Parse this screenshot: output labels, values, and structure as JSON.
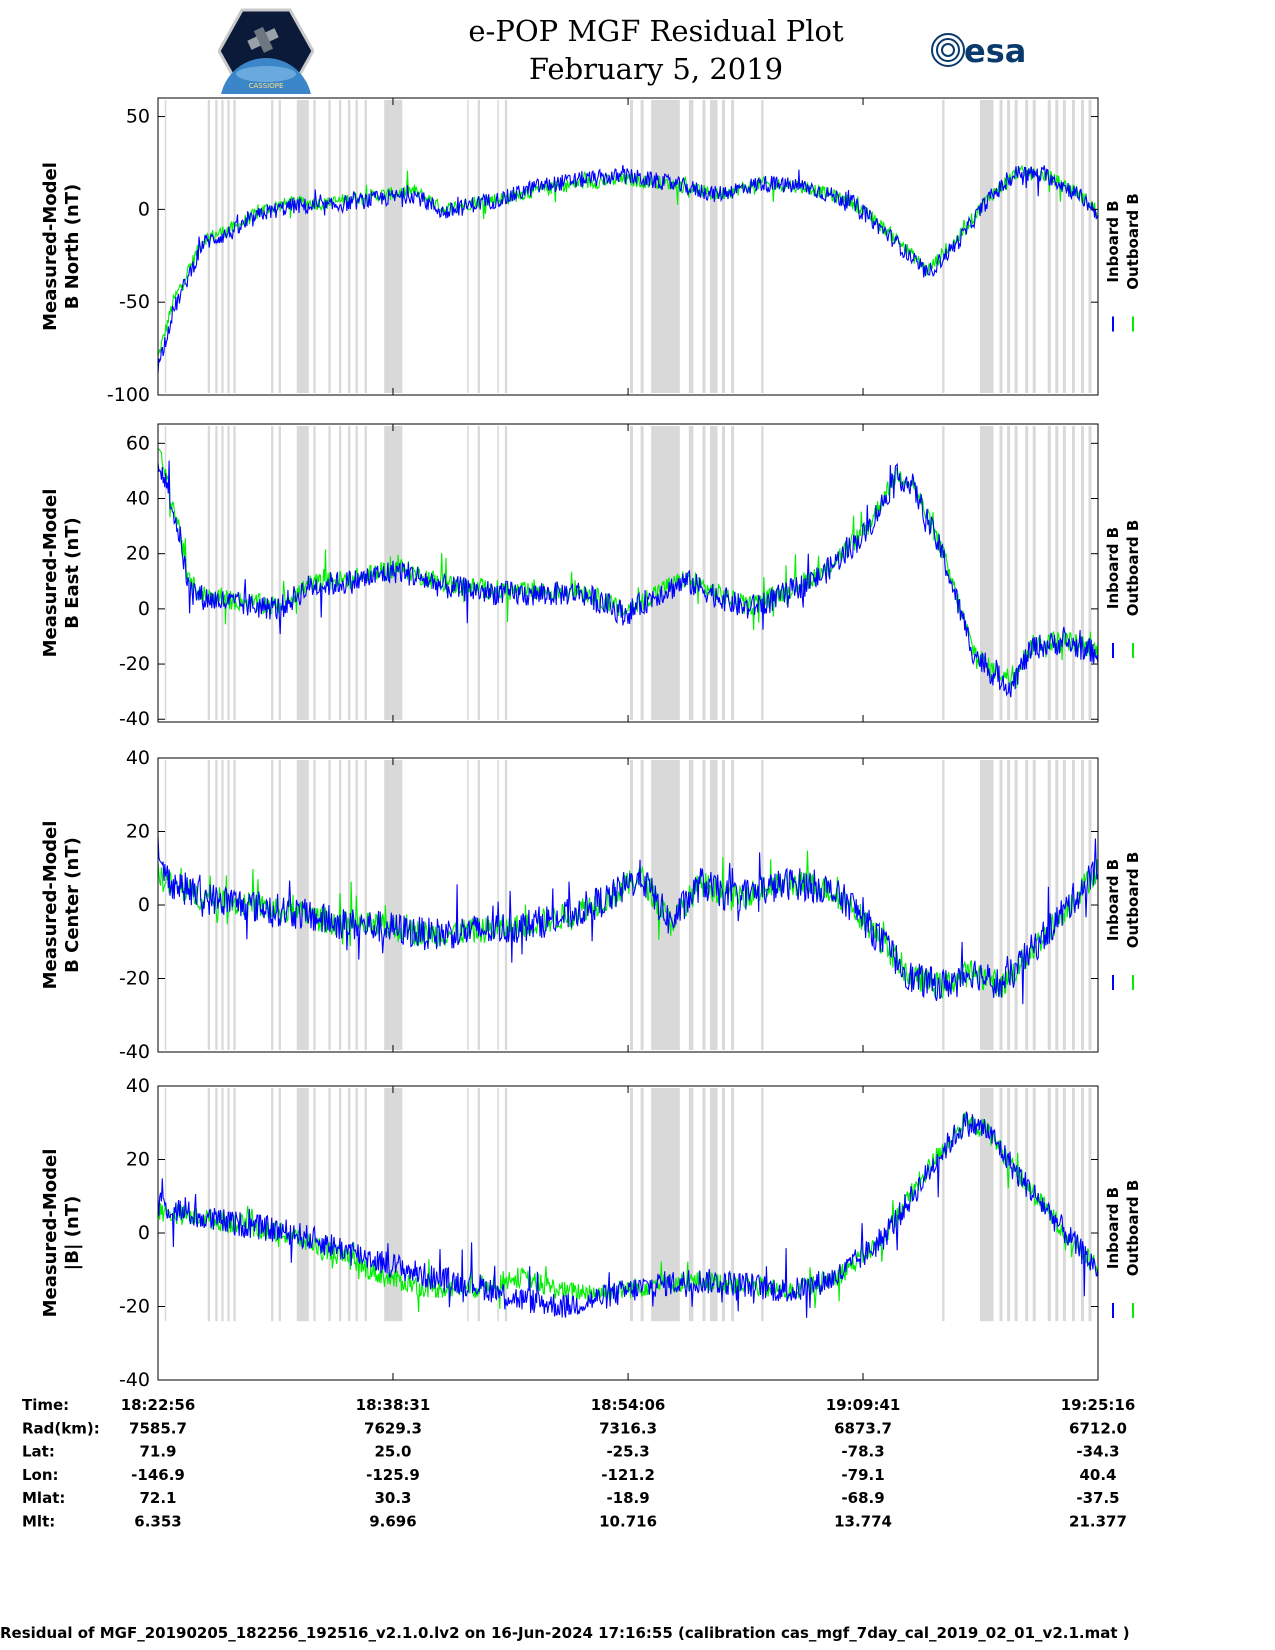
{
  "header": {
    "title": "e-POP MGF Residual Plot",
    "date": "February 5, 2019",
    "left_logo_text": "CASSIOPE",
    "right_logo_text": "esa"
  },
  "colors": {
    "inboard": "#0000ff",
    "outboard": "#00ee00",
    "gap_shading": "#d9d9d9"
  },
  "legend": [
    "Inboard B",
    "Outboard B"
  ],
  "chart_data": [
    {
      "type": "line",
      "id": "north",
      "ylabel": [
        "Measured-Model",
        "B North (nT)"
      ],
      "ylim": [
        -100,
        60
      ],
      "yticks": [
        50,
        0,
        -50,
        -100
      ],
      "x_range_minutes": [
        0,
        62.33
      ],
      "series": [
        {
          "name": "Inboard B",
          "x": [
            0,
            1,
            3,
            5,
            7,
            9,
            11,
            13,
            15,
            17,
            19,
            21,
            23,
            25,
            28,
            31,
            34,
            37,
            40,
            43,
            46,
            49,
            51,
            53,
            55,
            57,
            59,
            61,
            62.33
          ],
          "values": [
            -85,
            -55,
            -18,
            -12,
            -2,
            2,
            1,
            4,
            6,
            8,
            -2,
            3,
            6,
            12,
            16,
            18,
            14,
            8,
            14,
            12,
            4,
            -18,
            -35,
            -18,
            5,
            20,
            18,
            8,
            -2
          ]
        },
        {
          "name": "Outboard B",
          "x": [
            0,
            1,
            3,
            5,
            7,
            9,
            11,
            13,
            15,
            17,
            19,
            21,
            23,
            25,
            28,
            31,
            34,
            37,
            40,
            43,
            46,
            49,
            51,
            53,
            55,
            57,
            59,
            61,
            62.33
          ],
          "values": [
            -80,
            -50,
            -16,
            -10,
            0,
            4,
            3,
            6,
            8,
            10,
            0,
            4,
            6,
            10,
            14,
            16,
            14,
            8,
            14,
            12,
            4,
            -16,
            -33,
            -16,
            6,
            20,
            18,
            9,
            -1
          ]
        }
      ]
    },
    {
      "type": "line",
      "id": "east",
      "ylabel": [
        "Measured-Model",
        "B East (nT)"
      ],
      "ylim": [
        -41,
        67
      ],
      "yticks": [
        60,
        40,
        20,
        0,
        -20,
        -40
      ],
      "x_range_minutes": [
        0,
        62.33
      ],
      "series": [
        {
          "name": "Inboard B",
          "x": [
            0,
            0.8,
            1.5,
            2,
            3,
            5,
            8,
            10,
            13,
            16,
            19,
            22,
            25,
            28,
            31,
            33,
            35,
            37,
            39,
            41,
            44,
            47,
            49,
            50,
            52,
            54,
            55,
            56.5,
            58,
            60,
            62.33
          ],
          "values": [
            55,
            40,
            25,
            8,
            4,
            2,
            0,
            8,
            10,
            14,
            8,
            6,
            5,
            6,
            -2,
            5,
            10,
            5,
            0,
            4,
            12,
            28,
            48,
            45,
            20,
            -15,
            -22,
            -28,
            -14,
            -12,
            -16
          ]
        },
        {
          "name": "Outboard B",
          "x": [
            0,
            0.8,
            1.5,
            2,
            3,
            5,
            8,
            10,
            13,
            16,
            19,
            22,
            25,
            28,
            31,
            33,
            35,
            37,
            39,
            41,
            44,
            47,
            49,
            50,
            52,
            54,
            55,
            56.5,
            58,
            60,
            62.33
          ],
          "values": [
            58,
            42,
            27,
            10,
            5,
            3,
            1,
            9,
            11,
            15,
            9,
            7,
            6,
            7,
            -1,
            6,
            11,
            6,
            1,
            5,
            13,
            29,
            49,
            46,
            21,
            -14,
            -21,
            -25,
            -13,
            -11,
            -15
          ]
        }
      ]
    },
    {
      "type": "line",
      "id": "center",
      "ylabel": [
        "Measured-Model",
        "B Center (nT)"
      ],
      "ylim": [
        -40,
        40
      ],
      "yticks": [
        40,
        20,
        0,
        -20,
        -40
      ],
      "x_range_minutes": [
        0,
        62.33
      ],
      "series": [
        {
          "name": "Inboard B",
          "x": [
            0,
            1,
            3,
            6,
            9,
            12,
            15,
            18,
            21,
            24,
            27,
            30,
            32,
            34,
            36,
            38,
            40,
            42,
            44,
            46,
            48,
            50,
            52,
            54,
            56,
            58,
            60,
            62.33
          ],
          "values": [
            10,
            6,
            2,
            0,
            -2,
            -5,
            -6,
            -8,
            -7,
            -6,
            -3,
            2,
            8,
            -5,
            6,
            2,
            4,
            6,
            5,
            0,
            -10,
            -20,
            -22,
            -18,
            -22,
            -12,
            -2,
            10
          ]
        },
        {
          "name": "Outboard B",
          "x": [
            0,
            1,
            3,
            6,
            9,
            12,
            15,
            18,
            21,
            24,
            27,
            30,
            32,
            34,
            36,
            38,
            40,
            42,
            44,
            46,
            48,
            50,
            52,
            54,
            56,
            58,
            60,
            62.33
          ],
          "values": [
            8,
            5,
            2,
            0,
            -2,
            -5,
            -6,
            -8,
            -7,
            -6,
            -3,
            2,
            8,
            -5,
            6,
            2,
            4,
            6,
            5,
            0,
            -10,
            -20,
            -22,
            -18,
            -22,
            -12,
            -2,
            10
          ]
        }
      ]
    },
    {
      "type": "line",
      "id": "total",
      "ylabel": [
        "Measured-Model",
        "|B| (nT)"
      ],
      "ylim": [
        -40,
        40
      ],
      "yticks": [
        40,
        20,
        0,
        -20,
        -40
      ],
      "x_range_minutes": [
        0,
        62.33
      ],
      "series": [
        {
          "name": "Inboard B",
          "x": [
            0,
            3,
            6,
            9,
            12,
            15,
            18,
            21,
            24,
            27,
            30,
            33,
            36,
            39,
            42,
            45,
            48,
            50,
            52,
            53.5,
            55,
            57,
            59,
            61,
            62.33
          ],
          "values": [
            8,
            4,
            2,
            0,
            -4,
            -8,
            -12,
            -14,
            -18,
            -20,
            -17,
            -14,
            -13,
            -14,
            -16,
            -12,
            -2,
            10,
            22,
            30,
            28,
            16,
            6,
            -4,
            -10
          ]
        },
        {
          "name": "Outboard B",
          "x": [
            0,
            3,
            6,
            9,
            12,
            15,
            18,
            21,
            24,
            27,
            30,
            33,
            36,
            39,
            42,
            45,
            48,
            50,
            52,
            53.5,
            55,
            57,
            59,
            61,
            62.33
          ],
          "values": [
            6,
            4,
            2,
            -1,
            -6,
            -12,
            -15,
            -15,
            -12,
            -16,
            -16,
            -14,
            -13,
            -14,
            -16,
            -12,
            -2,
            11,
            23,
            30,
            28,
            16,
            6,
            -4,
            -10
          ]
        }
      ]
    }
  ],
  "gaps": [
    [
      0.45,
      0.55
    ],
    [
      3.3,
      3.45
    ],
    [
      3.8,
      3.95
    ],
    [
      4.2,
      4.35
    ],
    [
      4.6,
      4.75
    ],
    [
      5.0,
      5.15
    ],
    [
      7.5,
      7.65
    ],
    [
      8.0,
      8.15
    ],
    [
      9.2,
      10.0
    ],
    [
      10.3,
      10.45
    ],
    [
      11.3,
      11.45
    ],
    [
      12.0,
      12.15
    ],
    [
      12.6,
      12.75
    ],
    [
      13.1,
      13.25
    ],
    [
      13.7,
      13.85
    ],
    [
      15.0,
      16.2
    ],
    [
      20.5,
      20.6
    ],
    [
      21.2,
      21.35
    ],
    [
      22.5,
      22.6
    ],
    [
      23.0,
      23.15
    ],
    [
      31.3,
      31.5
    ],
    [
      32.0,
      32.2
    ],
    [
      32.7,
      34.6
    ],
    [
      35.2,
      35.5
    ],
    [
      36.1,
      36.3
    ],
    [
      36.6,
      37.1
    ],
    [
      37.4,
      37.6
    ],
    [
      38.0,
      38.2
    ],
    [
      40.0,
      40.15
    ],
    [
      52.0,
      52.15
    ],
    [
      54.5,
      55.4
    ],
    [
      55.8,
      56.0
    ],
    [
      56.3,
      56.5
    ],
    [
      56.8,
      57.0
    ],
    [
      57.5,
      57.7
    ],
    [
      58.0,
      58.2
    ],
    [
      59.0,
      59.2
    ],
    [
      59.5,
      59.7
    ],
    [
      60.0,
      60.2
    ],
    [
      60.6,
      60.8
    ],
    [
      61.2,
      61.4
    ],
    [
      61.7,
      61.9
    ]
  ],
  "x_axis": {
    "row_labels": [
      "Time:",
      "Rad(km):",
      "Lat:",
      "Lon:",
      "Mlat:",
      "Mlt:"
    ],
    "columns": [
      {
        "Time:": "18:22:56",
        "Rad(km):": "7585.7",
        "Lat:": "71.9",
        "Lon:": "-146.9",
        "Mlat:": "72.1",
        "Mlt:": "6.353"
      },
      {
        "Time:": "18:38:31",
        "Rad(km):": "7629.3",
        "Lat:": "25.0",
        "Lon:": "-125.9",
        "Mlat:": "30.3",
        "Mlt:": "9.696"
      },
      {
        "Time:": "18:54:06",
        "Rad(km):": "7316.3",
        "Lat:": "-25.3",
        "Lon:": "-121.2",
        "Mlat:": "-18.9",
        "Mlt:": "10.716"
      },
      {
        "Time:": "19:09:41",
        "Rad(km):": "6873.7",
        "Lat:": "-78.3",
        "Lon:": "-79.1",
        "Mlat:": "-68.9",
        "Mlt:": "13.774"
      },
      {
        "Time:": "19:25:16",
        "Rad(km):": "6712.0",
        "Lat:": "-34.3",
        "Lon:": "40.4",
        "Mlat:": "-37.5",
        "Mlt:": "21.377"
      }
    ],
    "tick_minutes": [
      0,
      15.58,
      31.17,
      46.75,
      62.33
    ]
  },
  "footer": "Residual of MGF_20190205_182256_192516_v2.1.0.lv2 on 16-Jun-2024 17:16:55 (calibration cas_mgf_7day_cal_2019_02_01_v2.1.mat )"
}
